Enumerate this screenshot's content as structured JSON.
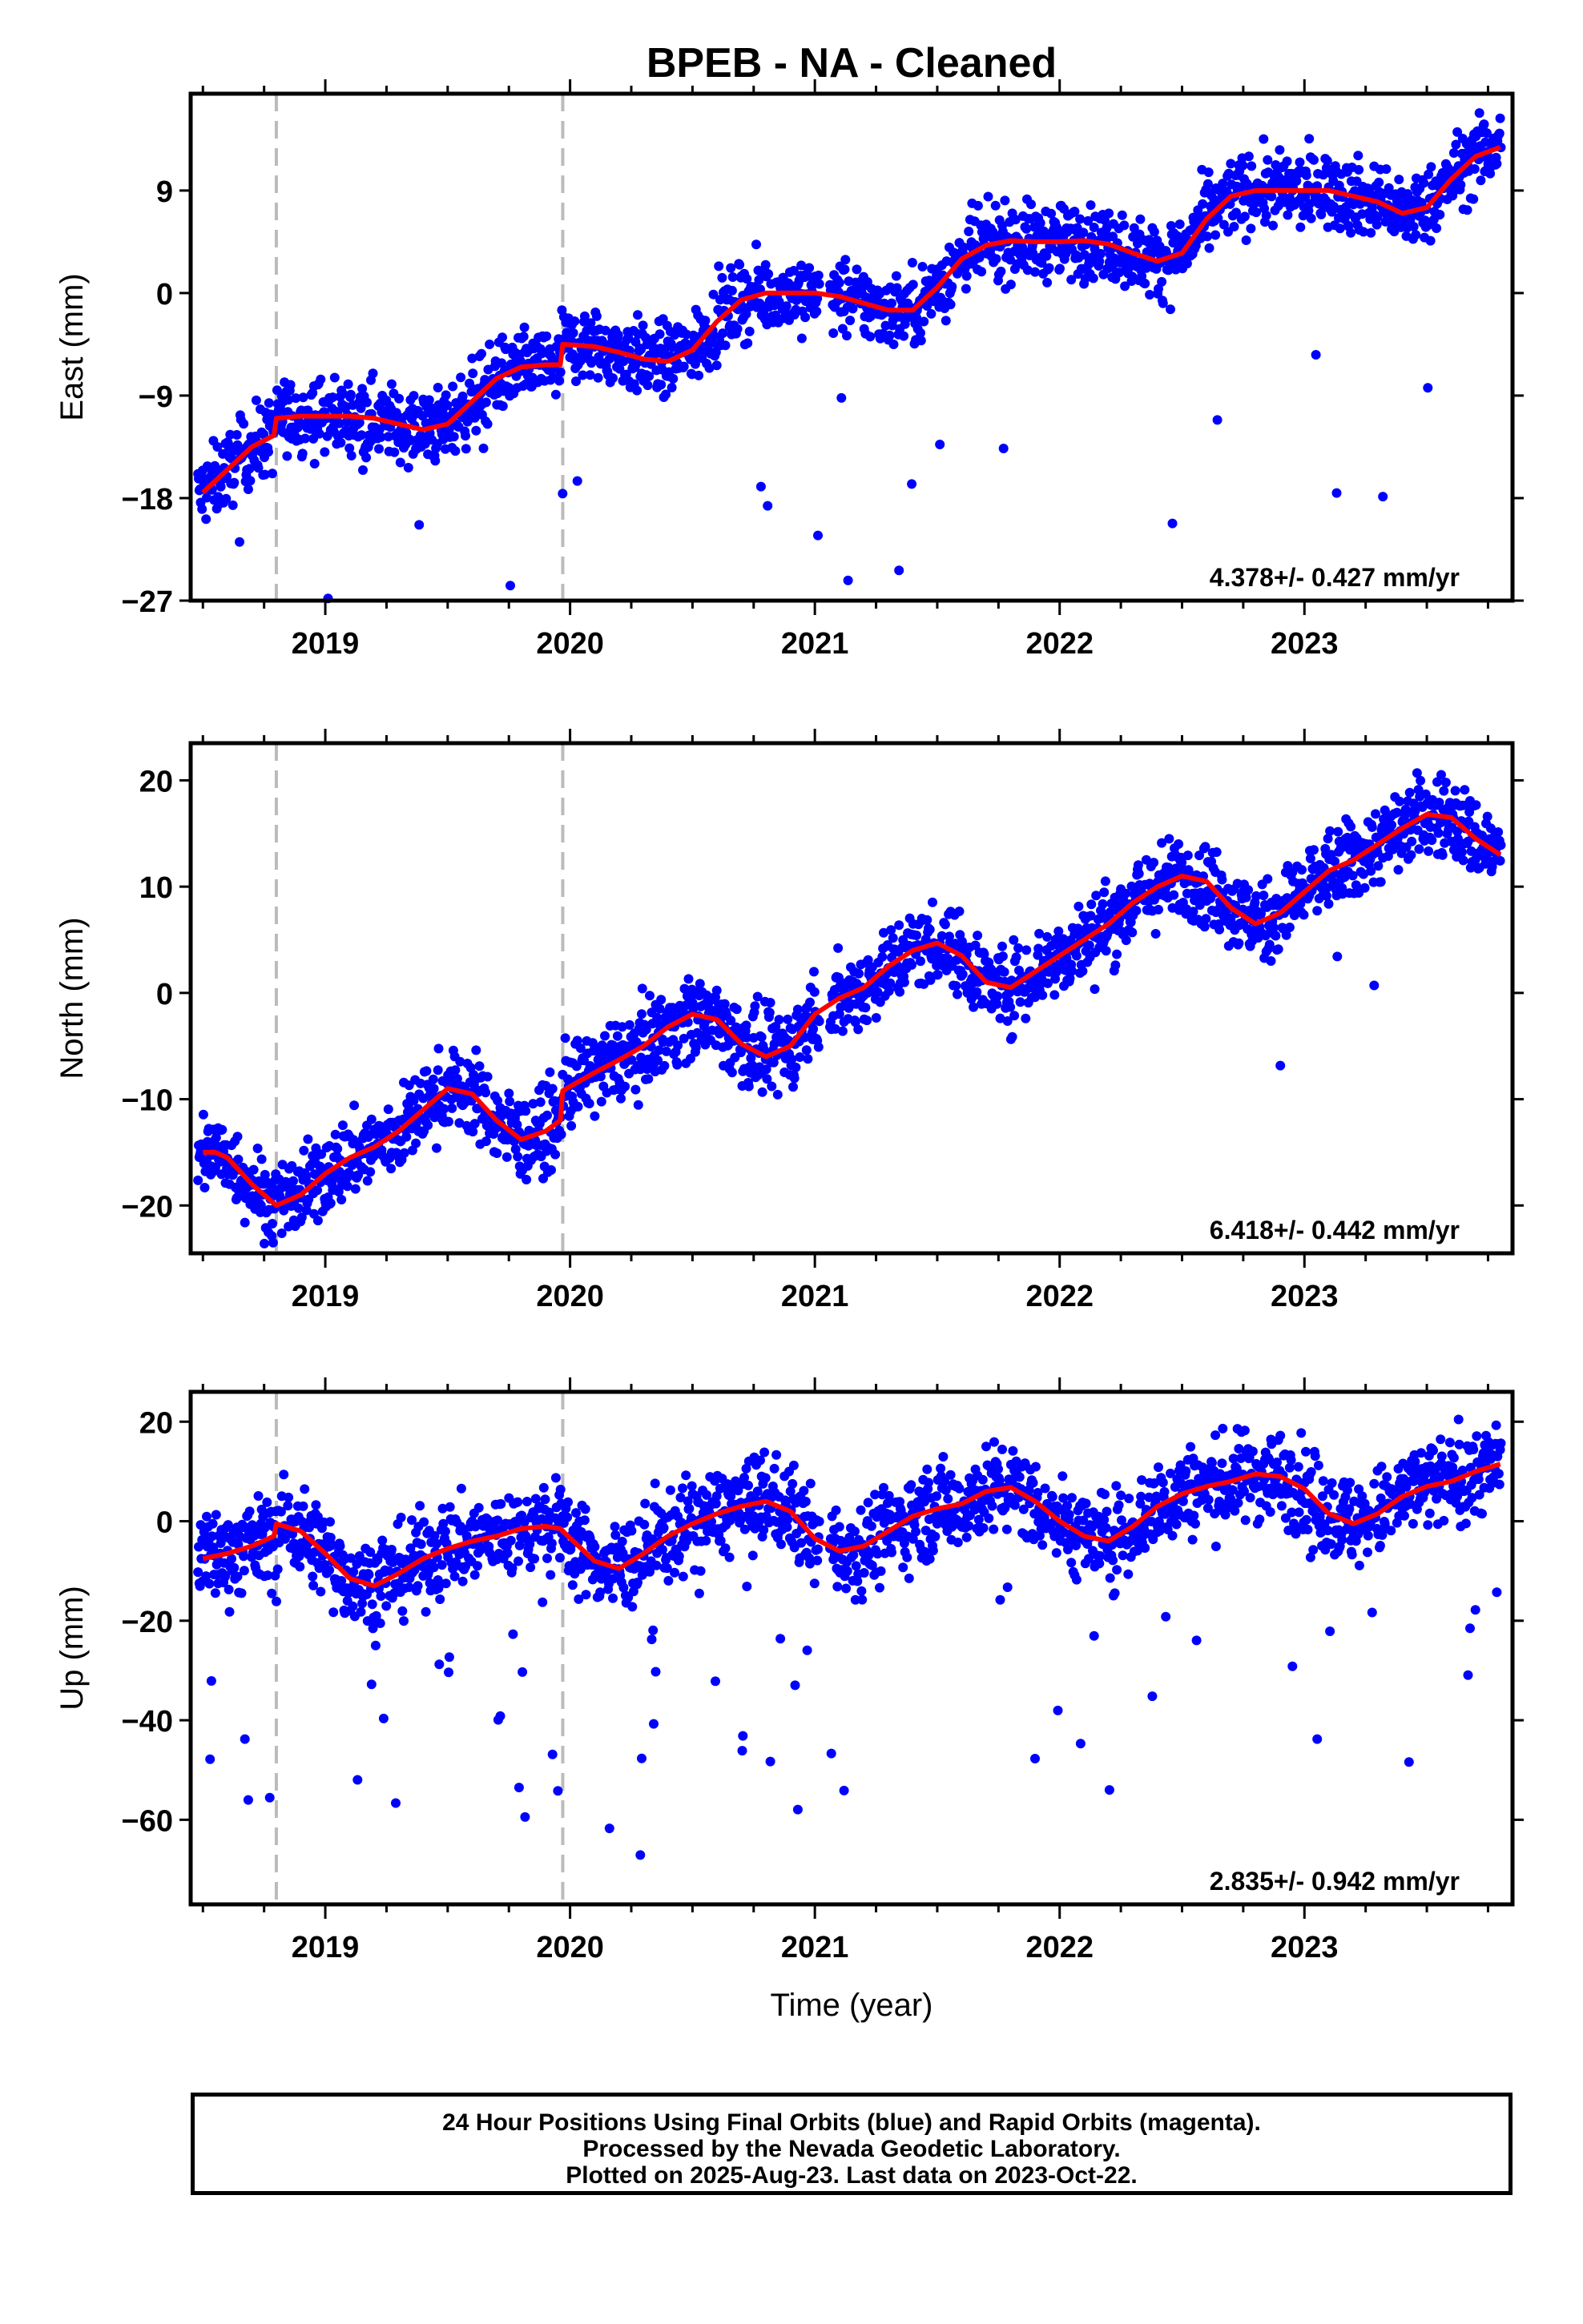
{
  "title": "BPEB  - NA - Cleaned",
  "footer": {
    "lines": [
      "24 Hour Positions Using Final Orbits (blue) and Rapid Orbits (magenta).",
      "Processed by the Nevada Geodetic Laboratory.",
      "Plotted on 2025-Aug-23. Last data on 2023-Oct-22."
    ]
  },
  "colors": {
    "daily_points": "#0000ff",
    "fit_line": "#ff0000",
    "event_lines": "#bbbbbb",
    "frame": "#000000"
  },
  "chart_data": [
    {
      "type": "scatter",
      "name": "east",
      "ylabel": "East (mm)",
      "xlabel": "",
      "xlim": [
        2018.45,
        2023.85
      ],
      "ylim": [
        -27,
        17.5
      ],
      "yticks": [
        -27,
        -18,
        -9,
        0,
        9
      ],
      "ytick_labels": [
        "−27",
        "−18",
        "−9",
        "0",
        "9"
      ],
      "xticks": [
        2019,
        2020,
        2021,
        2022,
        2023
      ],
      "xtick_labels": [
        "2019",
        "2020",
        "2021",
        "2022",
        "2023"
      ],
      "event_lines": [
        2018.8,
        2019.97
      ],
      "rate_label": "4.378+/- 0.427 mm/yr",
      "fit": {
        "x": [
          2018.5,
          2018.6,
          2018.7,
          2018.79,
          2018.8,
          2018.9,
          2019.0,
          2019.1,
          2019.2,
          2019.3,
          2019.4,
          2019.5,
          2019.6,
          2019.7,
          2019.8,
          2019.9,
          2019.96,
          2019.97,
          2020.1,
          2020.2,
          2020.3,
          2020.4,
          2020.5,
          2020.6,
          2020.7,
          2020.8,
          2020.9,
          2021.0,
          2021.1,
          2021.2,
          2021.3,
          2021.4,
          2021.5,
          2021.6,
          2021.7,
          2021.8,
          2021.9,
          2022.0,
          2022.1,
          2022.2,
          2022.3,
          2022.4,
          2022.5,
          2022.6,
          2022.7,
          2022.8,
          2022.9,
          2023.0,
          2023.1,
          2023.2,
          2023.3,
          2023.4,
          2023.5,
          2023.6,
          2023.7,
          2023.8
        ],
        "y": [
          -17.5,
          -15.5,
          -13.5,
          -12.5,
          -11.0,
          -10.8,
          -10.8,
          -10.8,
          -11.0,
          -11.5,
          -12.0,
          -11.5,
          -9.5,
          -7.5,
          -6.5,
          -6.3,
          -6.3,
          -4.5,
          -4.7,
          -5.2,
          -5.8,
          -6.0,
          -5.0,
          -2.5,
          -0.6,
          0.0,
          0.0,
          0.0,
          -0.3,
          -0.9,
          -1.5,
          -1.5,
          0.5,
          3.0,
          4.2,
          4.6,
          4.5,
          4.5,
          4.6,
          4.3,
          3.5,
          2.8,
          3.5,
          6.5,
          8.5,
          9.0,
          9.0,
          9.0,
          9.0,
          8.5,
          8.0,
          7.0,
          7.5,
          10.0,
          12.0,
          12.8
        ]
      }
    },
    {
      "type": "scatter",
      "name": "north",
      "ylabel": "North (mm)",
      "xlabel": "",
      "xlim": [
        2018.45,
        2023.85
      ],
      "ylim": [
        -24.5,
        23.5
      ],
      "yticks": [
        -20,
        -10,
        0,
        10,
        20
      ],
      "ytick_labels": [
        "−20",
        "−10",
        "0",
        "10",
        "20"
      ],
      "xticks": [
        2019,
        2020,
        2021,
        2022,
        2023
      ],
      "xtick_labels": [
        "2019",
        "2020",
        "2021",
        "2022",
        "2023"
      ],
      "event_lines": [
        2018.8,
        2019.97
      ],
      "rate_label": "6.418+/- 0.442 mm/yr",
      "fit": {
        "x": [
          2018.5,
          2018.55,
          2018.6,
          2018.7,
          2018.8,
          2018.9,
          2019.0,
          2019.1,
          2019.2,
          2019.3,
          2019.4,
          2019.5,
          2019.6,
          2019.7,
          2019.8,
          2019.9,
          2019.96,
          2019.97,
          2020.1,
          2020.2,
          2020.3,
          2020.4,
          2020.5,
          2020.6,
          2020.7,
          2020.8,
          2020.9,
          2021.0,
          2021.1,
          2021.2,
          2021.3,
          2021.4,
          2021.5,
          2021.6,
          2021.7,
          2021.8,
          2021.9,
          2022.0,
          2022.1,
          2022.2,
          2022.3,
          2022.4,
          2022.5,
          2022.6,
          2022.7,
          2022.8,
          2022.9,
          2023.0,
          2023.1,
          2023.2,
          2023.3,
          2023.4,
          2023.5,
          2023.6,
          2023.7,
          2023.8
        ],
        "y": [
          -15.0,
          -15.0,
          -15.5,
          -18.0,
          -20.0,
          -19.0,
          -17.0,
          -15.5,
          -14.5,
          -13.0,
          -11.0,
          -9.0,
          -9.5,
          -12.0,
          -13.8,
          -13.0,
          -12.0,
          -9.2,
          -7.5,
          -6.3,
          -5.0,
          -3.2,
          -2.0,
          -2.5,
          -4.8,
          -6.0,
          -5.0,
          -2.0,
          -0.5,
          0.5,
          2.5,
          4.0,
          4.7,
          3.5,
          1.0,
          0.5,
          2.0,
          3.5,
          5.0,
          6.5,
          8.5,
          10.0,
          11.0,
          10.5,
          8.0,
          6.5,
          7.5,
          9.5,
          11.5,
          12.5,
          14.0,
          15.5,
          16.8,
          16.5,
          14.5,
          13.0
        ]
      }
    },
    {
      "type": "scatter",
      "name": "up",
      "ylabel": "Up (mm)",
      "xlabel": "Time (year)",
      "xlim": [
        2018.45,
        2023.85
      ],
      "ylim": [
        -77,
        26
      ],
      "yticks": [
        -60,
        -40,
        -20,
        0,
        20
      ],
      "ytick_labels": [
        "−60",
        "−40",
        "−20",
        "0",
        "20"
      ],
      "xticks": [
        2019,
        2020,
        2021,
        2022,
        2023
      ],
      "xtick_labels": [
        "2019",
        "2020",
        "2021",
        "2022",
        "2023"
      ],
      "event_lines": [
        2018.8,
        2019.97
      ],
      "rate_label": "2.835+/- 0.942 mm/yr",
      "fit": {
        "x": [
          2018.5,
          2018.6,
          2018.7,
          2018.79,
          2018.8,
          2018.9,
          2019.0,
          2019.1,
          2019.2,
          2019.3,
          2019.4,
          2019.5,
          2019.6,
          2019.7,
          2019.8,
          2019.9,
          2019.96,
          2019.97,
          2020.1,
          2020.2,
          2020.3,
          2020.4,
          2020.5,
          2020.6,
          2020.7,
          2020.8,
          2020.9,
          2021.0,
          2021.1,
          2021.2,
          2021.3,
          2021.4,
          2021.5,
          2021.6,
          2021.7,
          2021.8,
          2021.9,
          2022.0,
          2022.1,
          2022.2,
          2022.3,
          2022.4,
          2022.5,
          2022.6,
          2022.7,
          2022.8,
          2022.9,
          2023.0,
          2023.1,
          2023.2,
          2023.3,
          2023.4,
          2023.5,
          2023.6,
          2023.7,
          2023.8
        ],
        "y": [
          -7.5,
          -6.5,
          -5.0,
          -3.0,
          -0.5,
          -2.0,
          -6.5,
          -11.5,
          -13.0,
          -10.5,
          -7.5,
          -5.5,
          -4.0,
          -3.0,
          -1.5,
          -1.0,
          -1.5,
          -2.0,
          -8.0,
          -9.5,
          -6.5,
          -3.0,
          -0.5,
          1.5,
          3.0,
          4.0,
          2.0,
          -3.5,
          -6.0,
          -5.0,
          -2.0,
          1.0,
          2.5,
          3.5,
          6.0,
          6.8,
          4.0,
          0.0,
          -3.0,
          -4.0,
          -1.0,
          3.0,
          5.5,
          7.0,
          8.0,
          9.5,
          9.0,
          6.5,
          1.5,
          -0.5,
          1.5,
          5.0,
          7.0,
          8.0,
          10.0,
          11.5
        ]
      }
    }
  ]
}
